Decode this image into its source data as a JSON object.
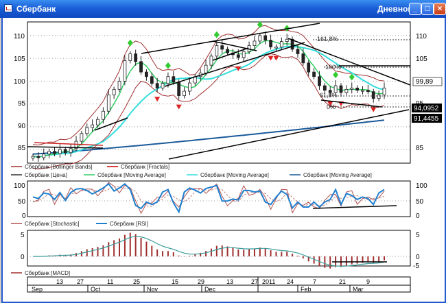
{
  "window": {
    "title": "Сбербанк",
    "period": "Дневной",
    "buttons": {
      "minimize": "_",
      "maximize": "□",
      "close": "×"
    }
  },
  "main_panel": {
    "y_ticks": [
      "110",
      "105",
      "100",
      "95",
      "90",
      "85"
    ],
    "price_labels": [
      "99,89",
      "94,0952",
      "91,4455"
    ],
    "fib_labels": [
      "161,8%",
      "100%",
      "61,8%",
      "0%"
    ],
    "legend": [
      {
        "label": "Сбербанк [Bollinger Bands]",
        "color": "#a03030"
      },
      {
        "label": "Сбербанк [Fractals]",
        "color": "#cc0000"
      },
      {
        "label": "Сбербанк [Цена]",
        "color": "#303030"
      },
      {
        "label": "Сбербанк [Moving Average]",
        "color": "#33cc66"
      },
      {
        "label": "Сбербанк [Moving Average]",
        "color": "#33dddd"
      },
      {
        "label": "Сбербанк [Moving Average]",
        "color": "#1a5a9a"
      }
    ]
  },
  "osc_panel": {
    "y_ticks": [
      "100",
      "50",
      "0"
    ],
    "legend": [
      {
        "label": "Сбербанк [Stochastic]",
        "color": "#b05050"
      },
      {
        "label": "Сбербанк [RSI]",
        "color": "#2080d0"
      }
    ]
  },
  "macd_panel": {
    "y_ticks": [
      "5",
      "0",
      "-5"
    ],
    "legend": [
      {
        "label": "Сбербанк [MACD]",
        "color": "#a03030"
      }
    ]
  },
  "x_axis": {
    "days": [
      "13",
      "27",
      "11",
      "25",
      "15",
      "29",
      "13",
      "27",
      "2011",
      "24",
      "7",
      "21",
      "9"
    ],
    "months": [
      "Sep",
      "Oct",
      "Nov",
      "Dec",
      "Feb",
      "Mar"
    ]
  },
  "colors": {
    "fractal_up": "#33cc33",
    "fractal_down": "#dd2222",
    "bollinger": "#a03030",
    "ma_fast": "#33cc66",
    "ma_mid": "#33dddd",
    "ma_slow": "#1a5a9a"
  },
  "chart_data": {
    "type": "line",
    "ylim": [
      82,
      113
    ],
    "y_ticks": [
      85,
      90,
      95,
      100,
      105,
      110
    ],
    "close_approx": [
      83.5,
      83.2,
      84,
      84.6,
      84.1,
      85,
      84.3,
      85.2,
      86.8,
      88.5,
      89.8,
      90.4,
      91.6,
      93.4,
      97,
      98.2,
      100,
      104.5,
      106,
      104.3,
      102,
      101,
      99.5,
      98.5,
      99.5,
      101,
      99.8,
      96.8,
      97.8,
      99.6,
      101,
      101.8,
      103.5,
      105.5,
      107.8,
      107,
      106.2,
      105.8,
      105.2,
      106.5,
      107.8,
      108.8,
      110,
      109,
      107.5,
      107.5,
      108.7,
      109.2,
      107,
      106,
      104,
      102,
      101,
      99,
      98,
      97.5,
      99,
      97.5,
      98.2,
      98.5,
      98,
      98,
      97.7,
      96.2,
      97,
      98.5
    ],
    "last_price": 99.89,
    "ma_levels": [
      94.0952,
      91.4455
    ],
    "fibonacci": [
      {
        "label": "161,8%"
      },
      {
        "label": "100%"
      },
      {
        "label": "61,8%"
      },
      {
        "label": "0%"
      }
    ]
  }
}
